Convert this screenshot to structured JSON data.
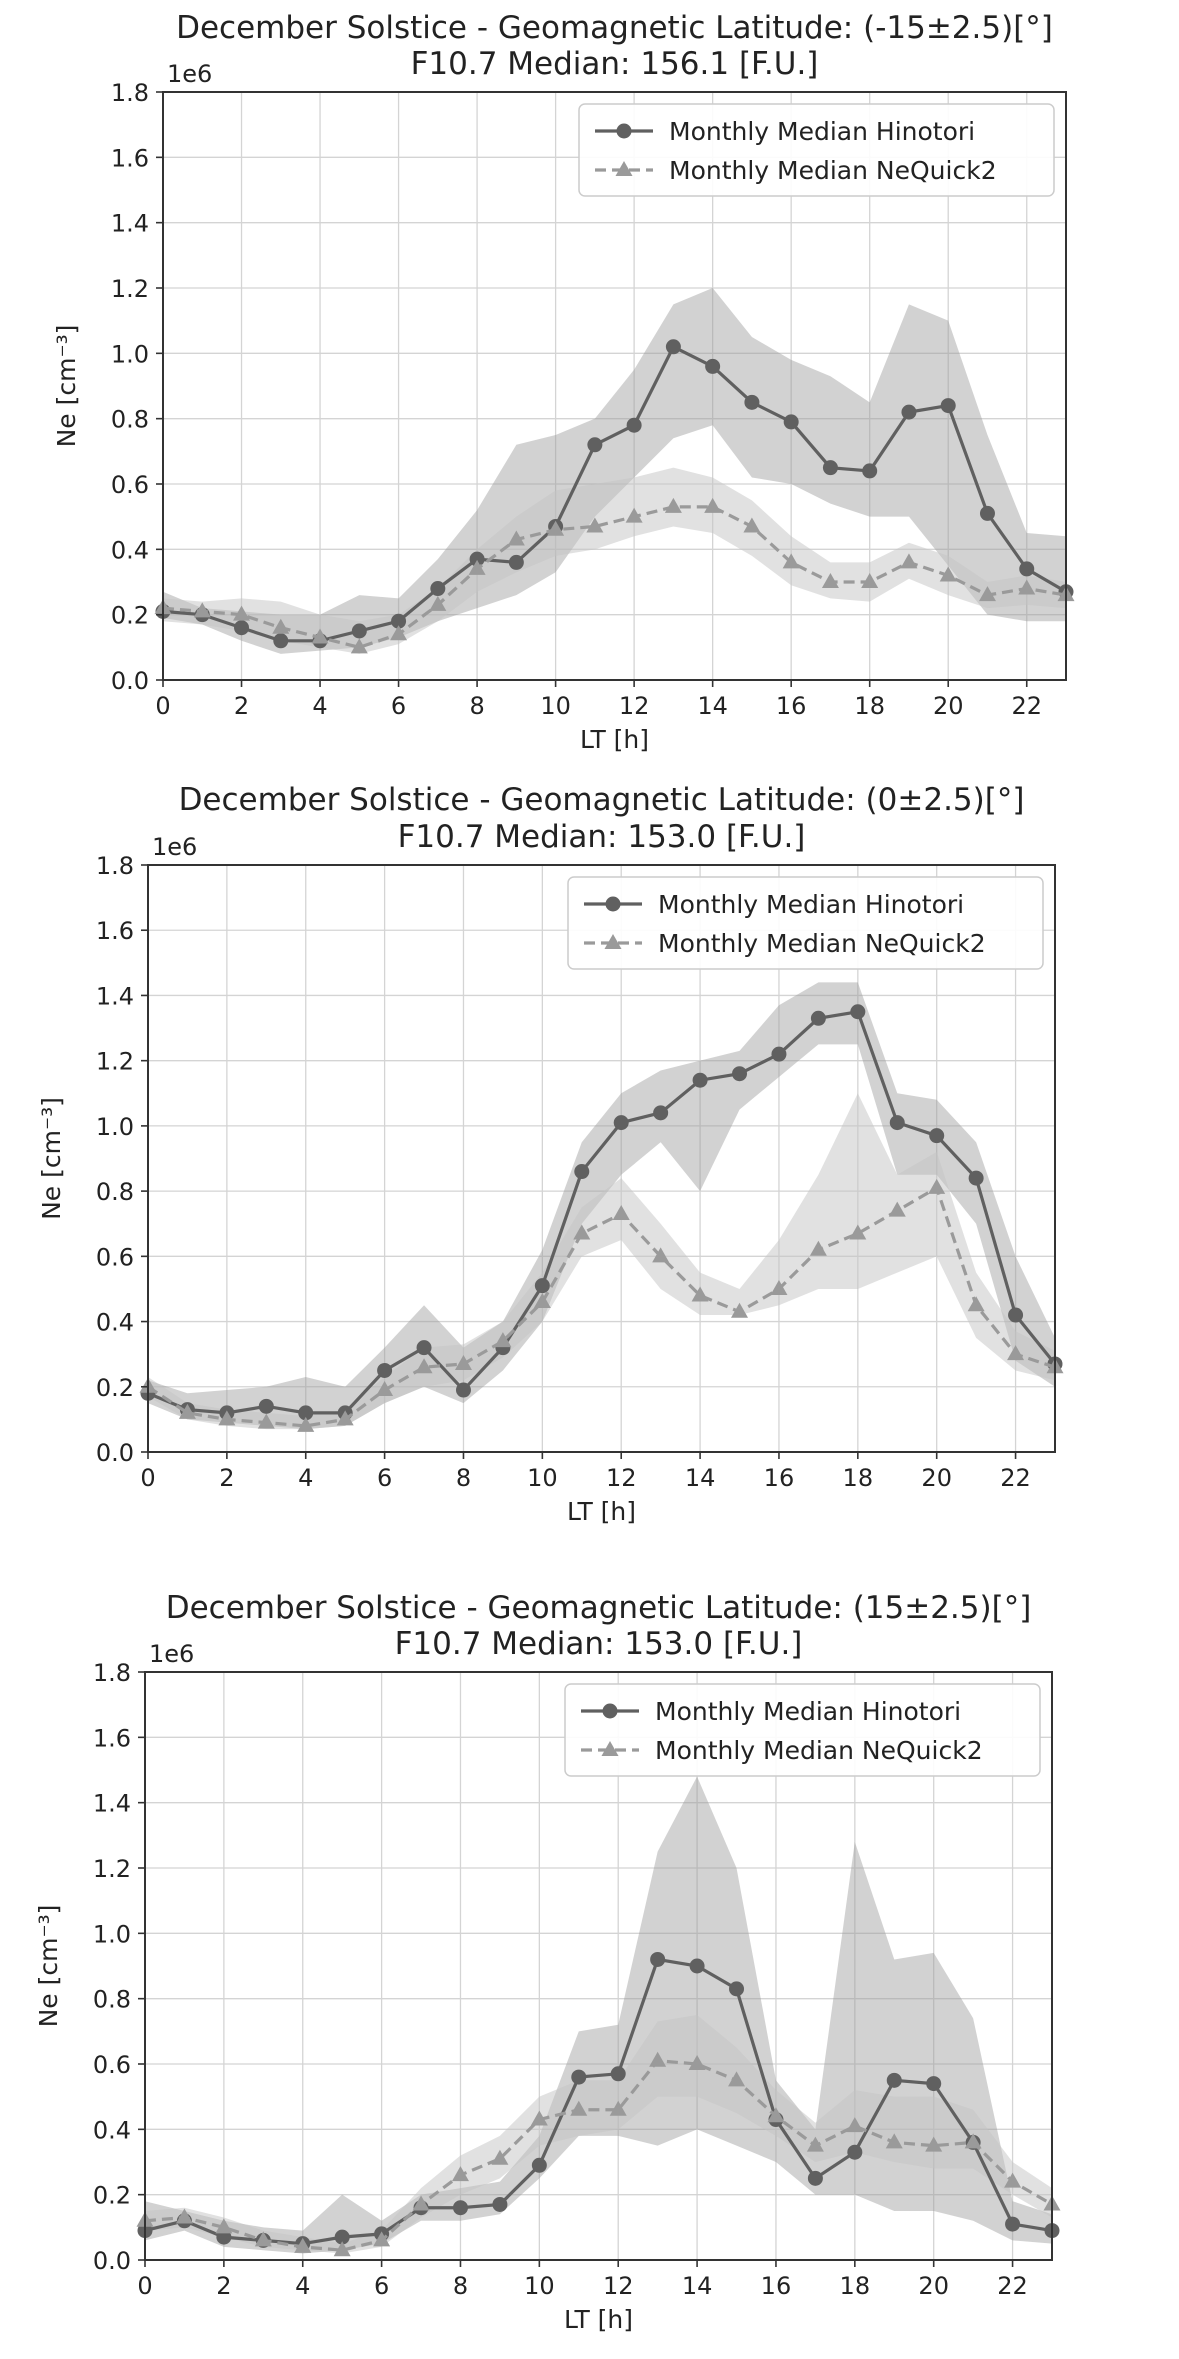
{
  "chart_data": [
    {
      "type": "line",
      "title": "December Solstice - Geomagnetic Latitude: (-15±2.5)[°]",
      "subtitle": "F10.7 Median: 156.1 [F.U.]",
      "xlabel": "LT [h]",
      "ylabel": "Ne [cm⁻³]",
      "y_multiplier": "1e6",
      "xlim": [
        0,
        23
      ],
      "ylim": [
        0,
        1.8
      ],
      "xticks": [
        0,
        2,
        4,
        6,
        8,
        10,
        12,
        14,
        16,
        18,
        20,
        22
      ],
      "yticks": [
        0.0,
        0.2,
        0.4,
        0.6,
        0.8,
        1.0,
        1.2,
        1.4,
        1.6,
        1.8
      ],
      "grid": true,
      "legend_position": "top-right",
      "x": [
        0,
        1,
        2,
        3,
        4,
        5,
        6,
        7,
        8,
        9,
        10,
        11,
        12,
        13,
        14,
        15,
        16,
        17,
        18,
        19,
        20,
        21,
        22,
        23
      ],
      "series": [
        {
          "name": "Monthly Median Hinotori",
          "marker": "circle",
          "linestyle": "solid",
          "color": "#606060",
          "values": [
            0.21,
            0.2,
            0.16,
            0.12,
            0.12,
            0.15,
            0.18,
            0.28,
            0.37,
            0.36,
            0.47,
            0.72,
            0.78,
            1.02,
            0.96,
            0.85,
            0.79,
            0.65,
            0.64,
            0.82,
            0.84,
            0.51,
            0.34,
            0.27
          ],
          "band_lower": [
            0.19,
            0.17,
            0.12,
            0.08,
            0.09,
            0.1,
            0.13,
            0.18,
            0.22,
            0.26,
            0.33,
            0.5,
            0.62,
            0.74,
            0.78,
            0.62,
            0.6,
            0.54,
            0.5,
            0.5,
            0.35,
            0.2,
            0.18,
            0.18
          ],
          "band_upper": [
            0.27,
            0.22,
            0.21,
            0.2,
            0.2,
            0.26,
            0.25,
            0.37,
            0.52,
            0.72,
            0.75,
            0.8,
            0.95,
            1.15,
            1.2,
            1.05,
            0.98,
            0.93,
            0.85,
            1.15,
            1.1,
            0.75,
            0.45,
            0.44
          ]
        },
        {
          "name": "Monthly Median NeQuick2",
          "marker": "triangle",
          "linestyle": "dashed",
          "color": "#9a9a9a",
          "values": [
            0.22,
            0.21,
            0.2,
            0.16,
            0.13,
            0.1,
            0.14,
            0.23,
            0.34,
            0.43,
            0.46,
            0.47,
            0.5,
            0.53,
            0.53,
            0.47,
            0.36,
            0.3,
            0.3,
            0.36,
            0.32,
            0.26,
            0.28,
            0.26
          ],
          "band_lower": [
            0.18,
            0.17,
            0.15,
            0.12,
            0.1,
            0.08,
            0.11,
            0.18,
            0.27,
            0.33,
            0.38,
            0.4,
            0.44,
            0.47,
            0.45,
            0.38,
            0.29,
            0.25,
            0.24,
            0.31,
            0.26,
            0.22,
            0.23,
            0.22
          ],
          "band_upper": [
            0.25,
            0.24,
            0.25,
            0.24,
            0.2,
            0.18,
            0.2,
            0.28,
            0.4,
            0.5,
            0.58,
            0.6,
            0.62,
            0.65,
            0.62,
            0.55,
            0.44,
            0.36,
            0.36,
            0.42,
            0.38,
            0.3,
            0.32,
            0.3
          ]
        }
      ]
    },
    {
      "type": "line",
      "title": "December Solstice - Geomagnetic Latitude: (0±2.5)[°]",
      "subtitle": "F10.7 Median: 153.0 [F.U.]",
      "xlabel": "LT [h]",
      "ylabel": "Ne [cm⁻³]",
      "y_multiplier": "1e6",
      "xlim": [
        0,
        23
      ],
      "ylim": [
        0,
        1.8
      ],
      "xticks": [
        0,
        2,
        4,
        6,
        8,
        10,
        12,
        14,
        16,
        18,
        20,
        22
      ],
      "yticks": [
        0.0,
        0.2,
        0.4,
        0.6,
        0.8,
        1.0,
        1.2,
        1.4,
        1.6,
        1.8
      ],
      "grid": true,
      "legend_position": "top-right",
      "x": [
        0,
        1,
        2,
        3,
        4,
        5,
        6,
        7,
        8,
        9,
        10,
        11,
        12,
        13,
        14,
        15,
        16,
        17,
        18,
        19,
        20,
        21,
        22,
        23
      ],
      "series": [
        {
          "name": "Monthly Median Hinotori",
          "marker": "circle",
          "linestyle": "solid",
          "color": "#606060",
          "values": [
            0.18,
            0.13,
            0.12,
            0.14,
            0.12,
            0.12,
            0.25,
            0.32,
            0.19,
            0.32,
            0.51,
            0.86,
            1.01,
            1.04,
            1.14,
            1.16,
            1.22,
            1.33,
            1.35,
            1.01,
            0.97,
            0.84,
            0.42,
            0.27
          ],
          "band_lower": [
            0.15,
            0.1,
            0.09,
            0.08,
            0.07,
            0.08,
            0.15,
            0.2,
            0.15,
            0.25,
            0.4,
            0.7,
            0.85,
            0.95,
            0.8,
            1.05,
            1.15,
            1.25,
            1.25,
            0.85,
            0.85,
            0.7,
            0.28,
            0.2
          ],
          "band_upper": [
            0.22,
            0.18,
            0.19,
            0.2,
            0.23,
            0.2,
            0.32,
            0.45,
            0.32,
            0.4,
            0.62,
            0.95,
            1.1,
            1.17,
            1.2,
            1.23,
            1.37,
            1.44,
            1.44,
            1.1,
            1.08,
            0.95,
            0.6,
            0.35
          ]
        },
        {
          "name": "Monthly Median NeQuick2",
          "marker": "triangle",
          "linestyle": "dashed",
          "color": "#9a9a9a",
          "values": [
            0.2,
            0.12,
            0.1,
            0.09,
            0.08,
            0.1,
            0.19,
            0.26,
            0.27,
            0.34,
            0.46,
            0.67,
            0.73,
            0.6,
            0.48,
            0.43,
            0.5,
            0.62,
            0.67,
            0.74,
            0.81,
            0.45,
            0.3,
            0.26
          ],
          "band_lower": [
            0.17,
            0.1,
            0.08,
            0.07,
            0.07,
            0.08,
            0.15,
            0.2,
            0.22,
            0.29,
            0.4,
            0.6,
            0.65,
            0.5,
            0.42,
            0.42,
            0.45,
            0.5,
            0.5,
            0.55,
            0.6,
            0.35,
            0.25,
            0.22
          ],
          "band_upper": [
            0.23,
            0.15,
            0.13,
            0.12,
            0.11,
            0.13,
            0.23,
            0.32,
            0.33,
            0.4,
            0.55,
            0.75,
            0.84,
            0.7,
            0.55,
            0.5,
            0.65,
            0.85,
            1.1,
            0.85,
            0.92,
            0.55,
            0.37,
            0.31
          ]
        }
      ]
    },
    {
      "type": "line",
      "title": "December Solstice - Geomagnetic Latitude: (15±2.5)[°]",
      "subtitle": "F10.7 Median: 153.0 [F.U.]",
      "xlabel": "LT [h]",
      "ylabel": "Ne [cm⁻³]",
      "y_multiplier": "1e6",
      "xlim": [
        0,
        23
      ],
      "ylim": [
        0,
        1.8
      ],
      "xticks": [
        0,
        2,
        4,
        6,
        8,
        10,
        12,
        14,
        16,
        18,
        20,
        22
      ],
      "yticks": [
        0.0,
        0.2,
        0.4,
        0.6,
        0.8,
        1.0,
        1.2,
        1.4,
        1.6,
        1.8
      ],
      "grid": true,
      "legend_position": "top-right",
      "x": [
        0,
        1,
        2,
        3,
        4,
        5,
        6,
        7,
        8,
        9,
        10,
        11,
        12,
        13,
        14,
        15,
        16,
        17,
        18,
        19,
        20,
        21,
        22,
        23
      ],
      "series": [
        {
          "name": "Monthly Median Hinotori",
          "marker": "circle",
          "linestyle": "solid",
          "color": "#606060",
          "values": [
            0.09,
            0.12,
            0.07,
            0.06,
            0.05,
            0.07,
            0.08,
            0.16,
            0.16,
            0.17,
            0.29,
            0.56,
            0.57,
            0.92,
            0.9,
            0.83,
            0.43,
            0.25,
            0.33,
            0.55,
            0.54,
            0.36,
            0.11,
            0.09
          ],
          "band_lower": [
            0.06,
            0.09,
            0.04,
            0.03,
            0.02,
            0.03,
            0.05,
            0.12,
            0.12,
            0.14,
            0.25,
            0.38,
            0.38,
            0.35,
            0.4,
            0.35,
            0.3,
            0.2,
            0.2,
            0.15,
            0.15,
            0.12,
            0.06,
            0.05
          ],
          "band_upper": [
            0.18,
            0.15,
            0.12,
            0.1,
            0.09,
            0.2,
            0.12,
            0.2,
            0.22,
            0.24,
            0.38,
            0.7,
            0.72,
            1.25,
            1.48,
            1.2,
            0.55,
            0.4,
            1.28,
            0.92,
            0.94,
            0.74,
            0.18,
            0.14
          ]
        },
        {
          "name": "Monthly Median NeQuick2",
          "marker": "triangle",
          "linestyle": "dashed",
          "color": "#9a9a9a",
          "values": [
            0.12,
            0.13,
            0.1,
            0.06,
            0.04,
            0.03,
            0.06,
            0.17,
            0.26,
            0.31,
            0.43,
            0.46,
            0.46,
            0.61,
            0.6,
            0.55,
            0.44,
            0.35,
            0.41,
            0.36,
            0.35,
            0.36,
            0.24,
            0.17
          ],
          "band_lower": [
            0.09,
            0.1,
            0.07,
            0.04,
            0.03,
            0.02,
            0.04,
            0.13,
            0.2,
            0.25,
            0.35,
            0.38,
            0.4,
            0.5,
            0.5,
            0.45,
            0.38,
            0.3,
            0.33,
            0.3,
            0.28,
            0.28,
            0.2,
            0.13
          ],
          "band_upper": [
            0.15,
            0.16,
            0.13,
            0.09,
            0.07,
            0.05,
            0.09,
            0.22,
            0.32,
            0.38,
            0.5,
            0.55,
            0.55,
            0.73,
            0.75,
            0.65,
            0.52,
            0.42,
            0.52,
            0.5,
            0.5,
            0.46,
            0.3,
            0.22
          ]
        }
      ]
    }
  ]
}
